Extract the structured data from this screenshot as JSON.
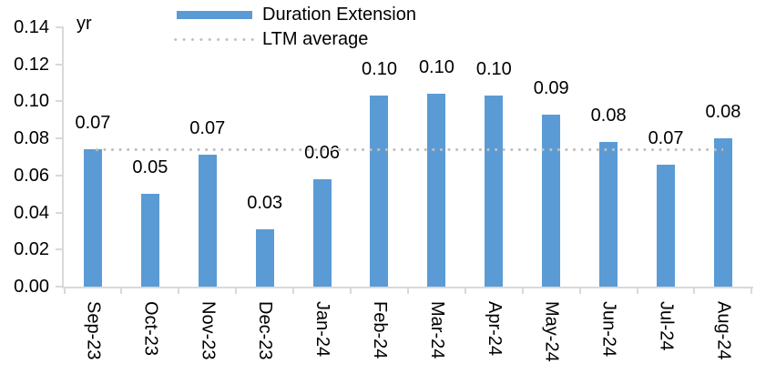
{
  "chart_data": {
    "type": "bar",
    "title": "",
    "unit_label": "yr",
    "categories": [
      "Sep-23",
      "Oct-23",
      "Nov-23",
      "Dec-23",
      "Jan-24",
      "Feb-24",
      "Mar-24",
      "Apr-24",
      "May-24",
      "Jun-24",
      "Jul-24",
      "Aug-24"
    ],
    "series": [
      {
        "name": "Duration Extension",
        "color": "#5B9BD5",
        "values": [
          0.074,
          0.05,
          0.071,
          0.031,
          0.058,
          0.103,
          0.104,
          0.103,
          0.093,
          0.078,
          0.066,
          0.08
        ],
        "data_labels": [
          "0.07",
          "0.05",
          "0.07",
          "0.03",
          "0.06",
          "0.10",
          "0.10",
          "0.10",
          "0.09",
          "0.08",
          "0.07",
          "0.08"
        ]
      }
    ],
    "average_line": {
      "name": "LTM average",
      "value": 0.074,
      "color": "#BFBFBF",
      "style": "dotted"
    },
    "ylim": [
      0,
      0.14
    ],
    "ytick_step": 0.02,
    "ytick_labels": [
      "0.00",
      "0.02",
      "0.04",
      "0.06",
      "0.08",
      "0.10",
      "0.12",
      "0.14"
    ],
    "grid": false,
    "legend_position": "top-center",
    "axis_color": "#D9D9D9",
    "text_color": "#000000"
  }
}
